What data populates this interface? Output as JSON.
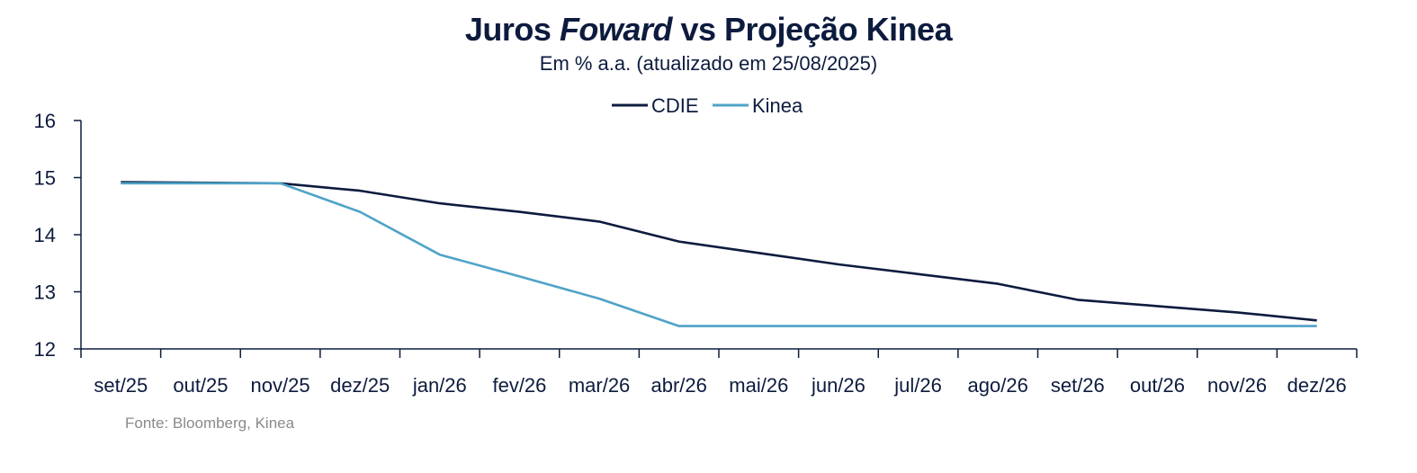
{
  "chart_data": {
    "type": "line",
    "title_parts": [
      "Juros ",
      "Foward",
      " vs Projeção Kinea"
    ],
    "subtitle": "Em % a.a. (atualizado em 25/08/2025)",
    "categories": [
      "set/25",
      "out/25",
      "nov/25",
      "dez/25",
      "jan/26",
      "fev/26",
      "mar/26",
      "abr/26",
      "mai/26",
      "jun/26",
      "jul/26",
      "ago/26",
      "set/26",
      "out/26",
      "nov/26",
      "dez/26"
    ],
    "series": [
      {
        "name": "CDIE",
        "color": "#0d1b3e",
        "values": [
          14.92,
          14.91,
          14.9,
          14.77,
          14.55,
          14.4,
          14.23,
          13.88,
          13.68,
          13.48,
          13.31,
          13.14,
          12.86,
          12.75,
          12.64,
          12.5
        ]
      },
      {
        "name": "Kinea",
        "color": "#4fa3c7",
        "values": [
          14.9,
          14.9,
          14.9,
          14.4,
          13.65,
          13.27,
          12.88,
          12.4,
          12.4,
          12.4,
          12.4,
          12.4,
          12.4,
          12.4,
          12.4,
          12.4
        ]
      }
    ],
    "ylim": [
      12,
      16
    ],
    "yticks": [
      12,
      13,
      14,
      15,
      16
    ],
    "grid": false,
    "legend_position": "top-center",
    "xlabel": "",
    "ylabel": ""
  },
  "source": "Fonte: Bloomberg, Kinea"
}
